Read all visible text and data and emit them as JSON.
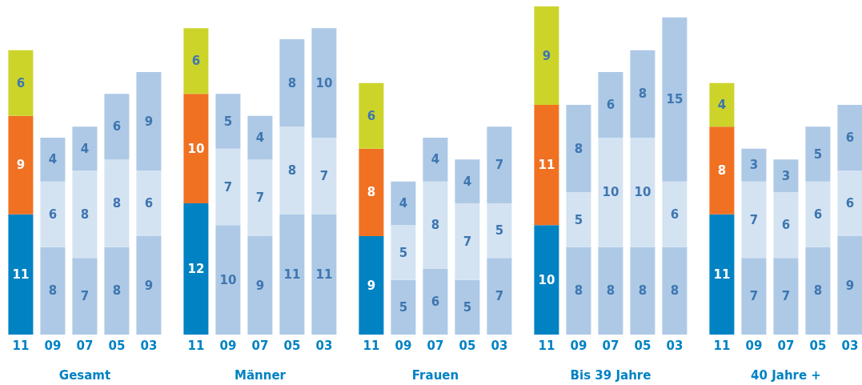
{
  "chart_data": [
    {
      "type": "bar",
      "stacked": true,
      "xlabel": "Gesamt",
      "categories": [
        "11",
        "09",
        "07",
        "05",
        "03"
      ],
      "tick_labels": "x",
      "data_labels": true,
      "series": [
        {
          "colors": [
            "#0082c3",
            "#adc9e6",
            "#adc9e6",
            "#adc9e6",
            "#adc9e6"
          ],
          "values": [
            11,
            8,
            7,
            8,
            9
          ]
        },
        {
          "colors": [
            "#f07122",
            "#d4e3f2",
            "#d4e3f2",
            "#d4e3f2",
            "#d4e3f2"
          ],
          "values": [
            9,
            6,
            8,
            8,
            6
          ]
        },
        {
          "colors": [
            "#ccd42a",
            "#adc9e6",
            "#adc9e6",
            "#adc9e6",
            "#adc9e6"
          ],
          "values": [
            6,
            4,
            4,
            6,
            9
          ]
        }
      ]
    },
    {
      "type": "bar",
      "stacked": true,
      "xlabel": "Männer",
      "categories": [
        "11",
        "09",
        "07",
        "05",
        "03"
      ],
      "tick_labels": "x",
      "data_labels": true,
      "series": [
        {
          "colors": [
            "#0082c3",
            "#adc9e6",
            "#adc9e6",
            "#adc9e6",
            "#adc9e6"
          ],
          "values": [
            12,
            10,
            9,
            11,
            11
          ]
        },
        {
          "colors": [
            "#f07122",
            "#d4e3f2",
            "#d4e3f2",
            "#d4e3f2",
            "#d4e3f2"
          ],
          "values": [
            10,
            7,
            7,
            8,
            7
          ]
        },
        {
          "colors": [
            "#ccd42a",
            "#adc9e6",
            "#adc9e6",
            "#adc9e6",
            "#adc9e6"
          ],
          "values": [
            6,
            5,
            4,
            8,
            10
          ]
        }
      ]
    },
    {
      "type": "bar",
      "stacked": true,
      "xlabel": "Frauen",
      "categories": [
        "11",
        "09",
        "07",
        "05",
        "03"
      ],
      "tick_labels": "x",
      "data_labels": true,
      "series": [
        {
          "colors": [
            "#0082c3",
            "#adc9e6",
            "#adc9e6",
            "#adc9e6",
            "#adc9e6"
          ],
          "values": [
            9,
            5,
            6,
            5,
            7
          ]
        },
        {
          "colors": [
            "#f07122",
            "#d4e3f2",
            "#d4e3f2",
            "#d4e3f2",
            "#d4e3f2"
          ],
          "values": [
            8,
            5,
            8,
            7,
            5
          ]
        },
        {
          "colors": [
            "#ccd42a",
            "#adc9e6",
            "#adc9e6",
            "#adc9e6",
            "#adc9e6"
          ],
          "values": [
            6,
            4,
            4,
            4,
            7
          ]
        }
      ]
    },
    {
      "type": "bar",
      "stacked": true,
      "xlabel": "Bis 39 Jahre",
      "categories": [
        "11",
        "09",
        "07",
        "05",
        "03"
      ],
      "tick_labels": "x",
      "data_labels": true,
      "series": [
        {
          "colors": [
            "#0082c3",
            "#adc9e6",
            "#adc9e6",
            "#adc9e6",
            "#adc9e6"
          ],
          "values": [
            10,
            8,
            8,
            8,
            8
          ]
        },
        {
          "colors": [
            "#f07122",
            "#d4e3f2",
            "#d4e3f2",
            "#d4e3f2",
            "#d4e3f2"
          ],
          "values": [
            11,
            5,
            10,
            10,
            6
          ]
        },
        {
          "colors": [
            "#ccd42a",
            "#adc9e6",
            "#adc9e6",
            "#adc9e6",
            "#adc9e6"
          ],
          "values": [
            9,
            8,
            6,
            8,
            15
          ]
        }
      ]
    },
    {
      "type": "bar",
      "stacked": true,
      "xlabel": "40 Jahre +",
      "categories": [
        "11",
        "09",
        "07",
        "05",
        "03"
      ],
      "tick_labels": "x",
      "data_labels": true,
      "series": [
        {
          "colors": [
            "#0082c3",
            "#adc9e6",
            "#adc9e6",
            "#adc9e6",
            "#adc9e6"
          ],
          "values": [
            11,
            7,
            7,
            8,
            9
          ]
        },
        {
          "colors": [
            "#f07122",
            "#d4e3f2",
            "#d4e3f2",
            "#d4e3f2",
            "#d4e3f2"
          ],
          "values": [
            8,
            7,
            6,
            6,
            6
          ]
        },
        {
          "colors": [
            "#ccd42a",
            "#adc9e6",
            "#adc9e6",
            "#adc9e6",
            "#adc9e6"
          ],
          "values": [
            4,
            3,
            3,
            5,
            6
          ]
        }
      ]
    }
  ]
}
